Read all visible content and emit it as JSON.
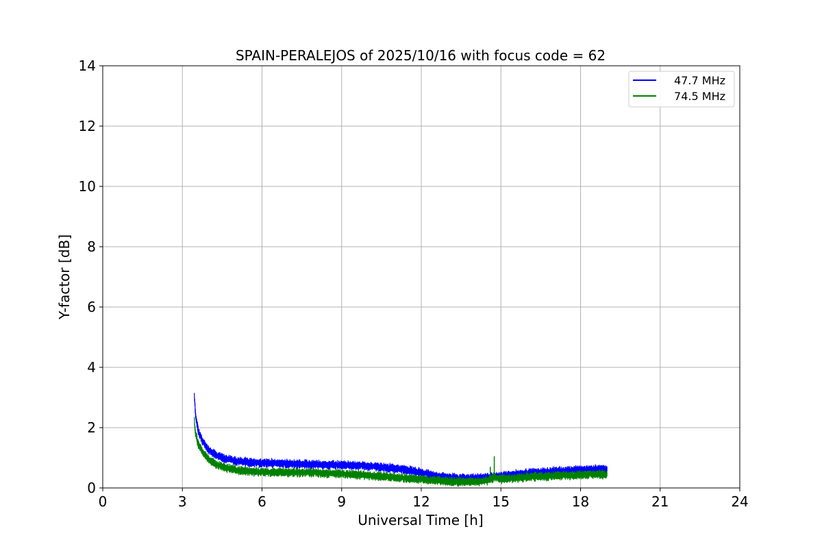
{
  "chart_data": {
    "type": "line",
    "title": "SPAIN-PERALEJOS of 2025/10/16 with focus code = 62",
    "xlabel": "Universal Time [h]",
    "ylabel": "Y-factor [dB]",
    "xlim": [
      0,
      24
    ],
    "ylim": [
      0,
      14
    ],
    "xticks": [
      0,
      3,
      6,
      9,
      12,
      15,
      18,
      21,
      24
    ],
    "xtick_labels": [
      "0",
      "3",
      "6",
      "9",
      "12",
      "15",
      "18",
      "21",
      "24"
    ],
    "yticks": [
      0,
      2,
      4,
      6,
      8,
      10,
      12,
      14
    ],
    "ytick_labels": [
      "0",
      "2",
      "4",
      "6",
      "8",
      "10",
      "12",
      "14"
    ],
    "grid": true,
    "legend_position": "top-right",
    "series": [
      {
        "name": "47.7 MHz",
        "color": "#0000ff",
        "noise_band_db": 0.25,
        "x": [
          3.45,
          3.5,
          3.6,
          3.75,
          4.0,
          4.25,
          4.5,
          5.0,
          5.5,
          6.0,
          6.5,
          7.0,
          8.0,
          9.0,
          10.0,
          11.0,
          11.5,
          12.0,
          12.5,
          13.0,
          13.5,
          14.0,
          14.5,
          15.0,
          15.5,
          16.0,
          16.5,
          17.0,
          17.5,
          18.0,
          18.5,
          19.0
        ],
        "y": [
          3.0,
          2.4,
          1.9,
          1.55,
          1.25,
          1.1,
          1.0,
          0.9,
          0.85,
          0.83,
          0.82,
          0.8,
          0.78,
          0.76,
          0.72,
          0.65,
          0.6,
          0.5,
          0.4,
          0.35,
          0.33,
          0.32,
          0.35,
          0.4,
          0.45,
          0.5,
          0.52,
          0.55,
          0.58,
          0.6,
          0.62,
          0.62
        ]
      },
      {
        "name": "74.5 MHz",
        "color": "#008000",
        "noise_band_db": 0.25,
        "x": [
          3.45,
          3.5,
          3.6,
          3.75,
          4.0,
          4.25,
          4.5,
          5.0,
          5.5,
          6.0,
          6.5,
          7.0,
          8.0,
          9.0,
          10.0,
          11.0,
          11.5,
          12.0,
          12.5,
          13.0,
          13.5,
          14.0,
          14.5,
          14.75,
          15.0,
          15.5,
          16.0,
          16.5,
          17.0,
          17.5,
          18.0,
          18.5,
          19.0
        ],
        "y": [
          2.2,
          1.8,
          1.45,
          1.2,
          0.95,
          0.8,
          0.7,
          0.6,
          0.55,
          0.53,
          0.52,
          0.52,
          0.5,
          0.47,
          0.42,
          0.35,
          0.32,
          0.28,
          0.25,
          0.22,
          0.2,
          0.2,
          0.25,
          0.35,
          0.3,
          0.32,
          0.36,
          0.38,
          0.4,
          0.42,
          0.43,
          0.45,
          0.45
        ]
      }
    ],
    "spikes": [
      {
        "series": "74.5 MHz",
        "x": 14.6,
        "y": 0.7
      },
      {
        "series": "74.5 MHz",
        "x": 14.75,
        "y": 1.05
      }
    ]
  }
}
